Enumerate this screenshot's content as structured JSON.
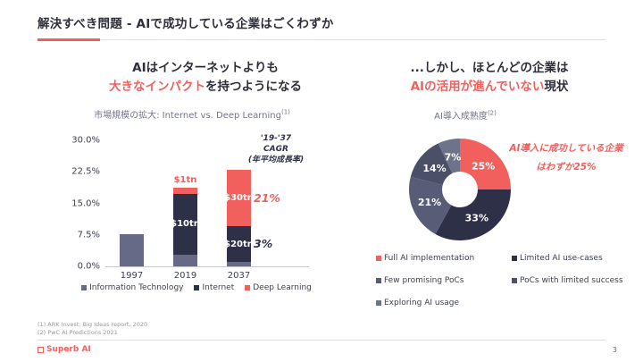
{
  "slide": {
    "title": "解決すべき問題 - AIで成功している企業はごくわずか",
    "accent_color": "#F2605D",
    "page_number": "3",
    "logo_text": "Superb AI",
    "footnotes": [
      "(1) ARK Invest: Big Ideas report, 2020",
      "(2) PwC AI Predictions 2021"
    ]
  },
  "left_panel": {
    "headline_line1": "AIはインターネットよりも",
    "headline_accent": "大きなインパクト",
    "headline_suffix": "を持つようになる",
    "subtitle": "市場規模の拡大: Internet vs. Deep Learning",
    "subtitle_footnote_ref": "(1)"
  },
  "right_panel": {
    "headline_line1": "...しかし、ほとんどの企業は",
    "headline_accent": "AIの活用が進んでいない",
    "headline_suffix": "現状",
    "subtitle": "AI導入成熟度",
    "subtitle_footnote_ref": "(2)",
    "annotation_line1": "AI導入に成功している企業",
    "annotation_line2": "はわずか25%"
  },
  "chart_data": [
    {
      "id": "market-size-bar",
      "type": "bar",
      "stacked": true,
      "title": "市場規模の拡大: Internet vs. Deep Learning",
      "categories": [
        "1997",
        "2019",
        "2037"
      ],
      "series": [
        {
          "name": "Information Technology",
          "color": "#666A87",
          "values": [
            7.7,
            2.8,
            1.0
          ],
          "segment_labels": [
            "",
            "",
            ""
          ]
        },
        {
          "name": "Internet",
          "color": "#2E3048",
          "values": [
            0,
            14.4,
            8.5
          ],
          "segment_labels": [
            "",
            "$10tn",
            "$20tn"
          ]
        },
        {
          "name": "Deep Learning",
          "color": "#F2605D",
          "values": [
            0,
            1.5,
            13.5
          ],
          "segment_labels": [
            "",
            "",
            "$30tn"
          ]
        }
      ],
      "bar_top_labels": [
        {
          "category": "2019",
          "text": "$1tn",
          "color": "#F2605D"
        }
      ],
      "yticks": [
        {
          "value": 0,
          "label": "0.0%"
        },
        {
          "value": 7.5,
          "label": "7.5%"
        },
        {
          "value": 15,
          "label": "15.0%"
        },
        {
          "value": 22.5,
          "label": "22.5%"
        },
        {
          "value": 30,
          "label": "30.0%"
        }
      ],
      "ylim": [
        0,
        30
      ],
      "grid": false,
      "legend_position": "bottom",
      "cagr_note_lines": [
        "'19-'37",
        "CAGR",
        "(年平均成長率)"
      ],
      "cagr_annotations": [
        {
          "text": "21%",
          "color": "#F2605D",
          "series": "Deep Learning"
        },
        {
          "text": "3%",
          "color": "#2E3048",
          "series": "Internet"
        }
      ]
    },
    {
      "id": "ai-maturity-donut",
      "type": "pie",
      "donut": true,
      "title": "AI導入成熟度",
      "value_label_format": "percent",
      "legend_position": "bottom",
      "slices": [
        {
          "label": "Full AI implementation",
          "value": 25,
          "color": "#F2605D"
        },
        {
          "label": "Limited AI use-cases",
          "value": 33,
          "color": "#2E3048"
        },
        {
          "label": "Few promising PoCs",
          "value": 21,
          "color": "#585C77"
        },
        {
          "label": "PoCs with limited success",
          "value": 14,
          "color": "#4C4F68"
        },
        {
          "label": "Exploring AI usage",
          "value": 7,
          "color": "#6F7389"
        }
      ]
    }
  ]
}
